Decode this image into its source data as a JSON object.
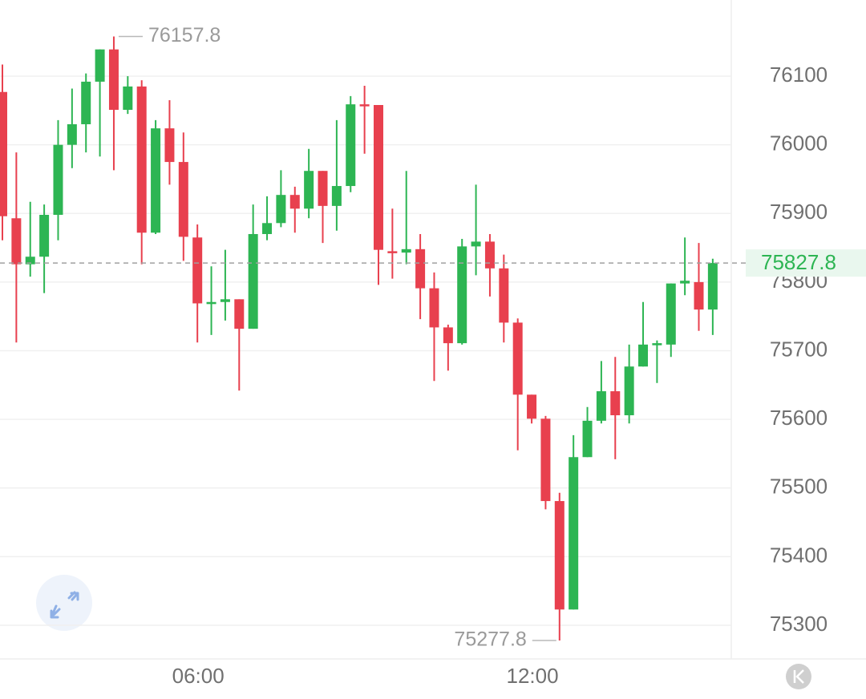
{
  "chart_data": {
    "type": "candlestick",
    "categories": [
      null,
      null,
      null,
      null,
      null,
      null,
      null,
      null,
      null,
      null,
      null,
      null,
      null,
      null,
      "06:00",
      null,
      null,
      null,
      null,
      null,
      null,
      null,
      null,
      null,
      null,
      null,
      null,
      null,
      null,
      null,
      null,
      null,
      null,
      null,
      null,
      null,
      null,
      null,
      "12:00",
      null,
      null,
      null,
      null,
      null,
      null,
      null,
      null,
      null,
      null,
      null,
      null,
      null
    ],
    "open": [
      76077,
      75893,
      75826,
      75837,
      75898,
      76000,
      76030,
      76092,
      76139,
      76051,
      76085,
      75872,
      76024,
      75975,
      75865,
      75768,
      75771,
      75775,
      75732,
      75870,
      75886,
      75927,
      75907,
      75962,
      75911,
      75940,
      76059,
      76058,
      75845,
      75843,
      75848,
      75791,
      75734,
      75711,
      75852,
      75859,
      75820,
      75741,
      75636,
      75601,
      75481,
      75323,
      75545,
      75598,
      75641,
      75606,
      75677,
      75708,
      75709,
      75798,
      75800,
      75760
    ],
    "high": [
      76117,
      75989,
      75917,
      75913,
      76036,
      76082,
      76104,
      76139,
      76157.8,
      76100,
      76094,
      76036,
      76065,
      76018,
      75884,
      75823,
      75847,
      75775,
      75913,
      75925,
      75963,
      75939,
      75994,
      75962,
      76036,
      76071,
      76086,
      76058,
      75907,
      75962,
      75870,
      75814,
      75738,
      75863,
      75942,
      75870,
      75840,
      75747,
      75636,
      75605,
      75493,
      75577,
      75618,
      75685,
      75691,
      75709,
      75771,
      75715,
      75798,
      75865,
      75857,
      75834
    ],
    "low": [
      75861,
      75712,
      75808,
      75784,
      75861,
      75966,
      75989,
      75983,
      75963,
      76045,
      75826,
      75870,
      75942,
      75831,
      75712,
      75723,
      75744,
      75642,
      75732,
      75861,
      75880,
      75872,
      75893,
      75857,
      75875,
      75931,
      75987,
      75796,
      75805,
      75826,
      75746,
      75656,
      75671,
      75709,
      75810,
      75779,
      75712,
      75555,
      75594,
      75469,
      75277.8,
      75323,
      75545,
      75594,
      75542,
      75594,
      75677,
      75653,
      75691,
      75781,
      75729,
      75723
    ],
    "close": [
      75896,
      75826,
      75837,
      75898,
      76000,
      76030,
      76092,
      76139,
      76051,
      76085,
      75872,
      76024,
      75975,
      75866,
      75769,
      75771,
      75775,
      75732,
      75870,
      75886,
      75927,
      75907,
      75962,
      75911,
      75940,
      76059,
      76057,
      75847,
      75843,
      75848,
      75791,
      75734,
      75711,
      75852,
      75859,
      75820,
      75741,
      75636,
      75601,
      75481,
      75323,
      75545,
      75598,
      75641,
      75606,
      75677,
      75709,
      75711,
      75798,
      75802,
      75760,
      75827.8
    ],
    "up_color": "#2db553",
    "down_color": "#e8404e",
    "ylim": [
      75251,
      76211
    ],
    "yticks": [
      75300,
      75400,
      75500,
      75600,
      75700,
      75800,
      75900,
      76000,
      76100
    ],
    "grid": true
  }
}
